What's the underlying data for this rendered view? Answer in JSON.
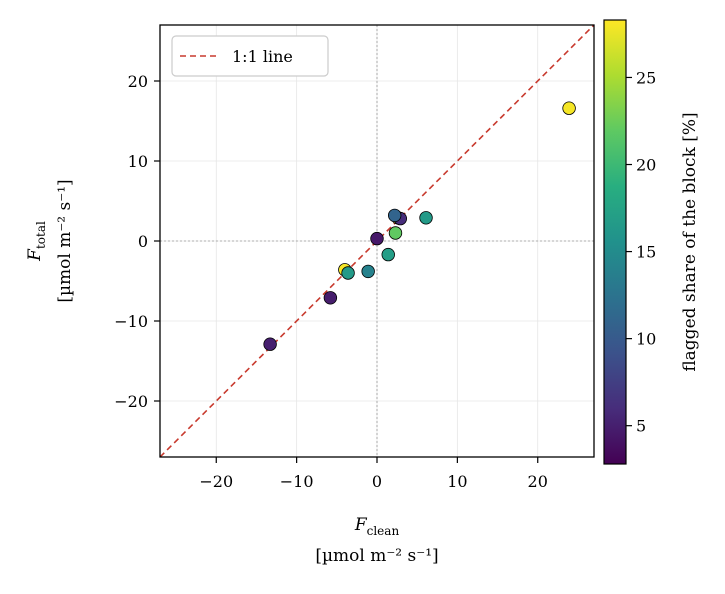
{
  "chart_data": {
    "type": "scatter",
    "xlabel": {
      "var": "F",
      "sub": "clean",
      "units": "[µmol m⁻² s⁻¹]"
    },
    "ylabel": {
      "var": "F",
      "sub": "total",
      "units": "[µmol m⁻² s⁻¹]"
    },
    "xlim": [
      -27,
      27
    ],
    "ylim": [
      -27,
      27
    ],
    "xticks": [
      -20,
      -10,
      0,
      10,
      20
    ],
    "yticks": [
      -20,
      -10,
      0,
      10,
      20
    ],
    "xtick_labels": [
      "−20",
      "−10",
      "0",
      "10",
      "20"
    ],
    "ytick_labels": [
      "−20",
      "−10",
      "0",
      "10",
      "20"
    ],
    "grid": true,
    "zero_lines": true,
    "reference_line": {
      "label": "1:1 line",
      "color": "#c83a2e",
      "style": "dashed"
    },
    "legend_position": "top-left",
    "colorbar": {
      "label": "flagged share of the block [%]",
      "colormap": "viridis",
      "range": [
        2.8,
        28.3
      ],
      "ticks": [
        5,
        10,
        15,
        20,
        25
      ],
      "tick_labels": [
        "5",
        "10",
        "15",
        "20",
        "25"
      ]
    },
    "points": [
      {
        "x": -13.3,
        "y": -12.9,
        "c": 5.0
      },
      {
        "x": -5.8,
        "y": -7.1,
        "c": 4.8
      },
      {
        "x": -4.0,
        "y": -3.6,
        "c": 28.0
      },
      {
        "x": -3.6,
        "y": -4.0,
        "c": 16.5
      },
      {
        "x": -1.1,
        "y": -3.8,
        "c": 14.0
      },
      {
        "x": 0.0,
        "y": 0.3,
        "c": 4.5
      },
      {
        "x": 1.4,
        "y": -1.7,
        "c": 17.0
      },
      {
        "x": 2.3,
        "y": 1.0,
        "c": 22.0
      },
      {
        "x": 2.6,
        "y": 2.9,
        "c": 27.5
      },
      {
        "x": 2.9,
        "y": 2.8,
        "c": 6.0
      },
      {
        "x": 2.2,
        "y": 3.2,
        "c": 11.0
      },
      {
        "x": 6.1,
        "y": 2.9,
        "c": 16.5
      },
      {
        "x": 23.9,
        "y": 16.6,
        "c": 28.0
      }
    ]
  }
}
